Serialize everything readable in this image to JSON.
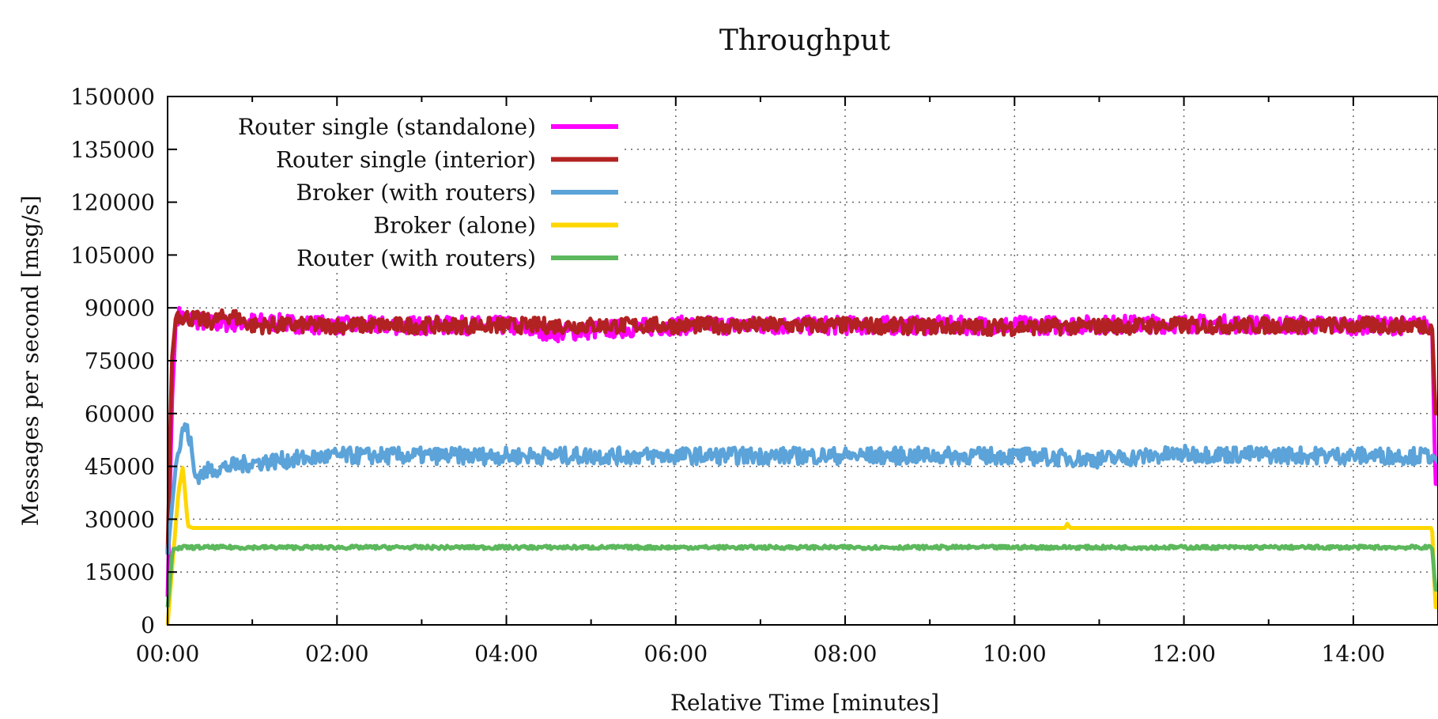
{
  "chart_data": {
    "type": "line",
    "title": "Throughput",
    "xlabel": "Relative Time [minutes]",
    "ylabel": "Messages per second [msg/s]",
    "xlim": [
      0,
      15
    ],
    "ylim": [
      0,
      150000
    ],
    "x_ticks": [
      0,
      2,
      4,
      6,
      8,
      10,
      12,
      14
    ],
    "x_tick_labels": [
      "00:00",
      "02:00",
      "04:00",
      "06:00",
      "08:00",
      "10:00",
      "12:00",
      "14:00"
    ],
    "y_ticks": [
      0,
      15000,
      30000,
      45000,
      60000,
      75000,
      90000,
      105000,
      120000,
      135000,
      150000
    ],
    "y_tick_labels": [
      "0",
      "15000",
      "30000",
      "45000",
      "60000",
      "75000",
      "90000",
      "105000",
      "120000",
      "135000",
      "150000"
    ],
    "grid": true,
    "legend_position": "top-left",
    "series": [
      {
        "name": "Router single (standalone)",
        "color": "#ff00ff",
        "noise": 2600,
        "points": [
          [
            0.0,
            8000
          ],
          [
            0.05,
            62000
          ],
          [
            0.1,
            88000
          ],
          [
            0.5,
            85500
          ],
          [
            1.0,
            86000
          ],
          [
            2.0,
            85000
          ],
          [
            4.0,
            85000
          ],
          [
            4.6,
            83000
          ],
          [
            6.0,
            85000
          ],
          [
            8.0,
            85000
          ],
          [
            10.0,
            85000
          ],
          [
            12.0,
            85500
          ],
          [
            14.0,
            85000
          ],
          [
            14.93,
            85000
          ],
          [
            14.97,
            40000
          ],
          [
            15.0,
            40000
          ]
        ]
      },
      {
        "name": "Router single (interior)",
        "color": "#b22222",
        "noise": 2300,
        "points": [
          [
            0.0,
            20000
          ],
          [
            0.05,
            75000
          ],
          [
            0.1,
            88000
          ],
          [
            0.5,
            86000
          ],
          [
            0.75,
            88000
          ],
          [
            1.0,
            85000
          ],
          [
            2.0,
            85000
          ],
          [
            4.0,
            85000
          ],
          [
            6.0,
            85000
          ],
          [
            8.0,
            85000
          ],
          [
            10.0,
            84500
          ],
          [
            12.0,
            85000
          ],
          [
            14.0,
            85000
          ],
          [
            14.93,
            85000
          ],
          [
            14.97,
            60000
          ],
          [
            15.0,
            60000
          ]
        ]
      },
      {
        "name": "Broker (with routers)",
        "color": "#5ba3d9",
        "noise": 2400,
        "points": [
          [
            0.0,
            20000
          ],
          [
            0.1,
            46000
          ],
          [
            0.2,
            57000
          ],
          [
            0.27,
            52000
          ],
          [
            0.32,
            42000
          ],
          [
            0.5,
            44000
          ],
          [
            1.0,
            46000
          ],
          [
            2.0,
            48000
          ],
          [
            4.0,
            48000
          ],
          [
            6.0,
            48000
          ],
          [
            8.0,
            48000
          ],
          [
            10.0,
            48000
          ],
          [
            11.0,
            47000
          ],
          [
            12.0,
            48500
          ],
          [
            14.0,
            48000
          ],
          [
            14.95,
            48000
          ],
          [
            15.0,
            46000
          ]
        ]
      },
      {
        "name": "Broker (alone)",
        "color": "#ffd700",
        "noise": 0,
        "points": [
          [
            0.0,
            0
          ],
          [
            0.05,
            15000
          ],
          [
            0.13,
            38000
          ],
          [
            0.18,
            45000
          ],
          [
            0.24,
            28000
          ],
          [
            0.3,
            27500
          ],
          [
            10.6,
            27500
          ],
          [
            10.62,
            28800
          ],
          [
            10.66,
            27500
          ],
          [
            14.93,
            27500
          ],
          [
            14.97,
            5000
          ],
          [
            15.0,
            5000
          ]
        ]
      },
      {
        "name": "Router (with routers)",
        "color": "#5cb85c",
        "noise": 500,
        "points": [
          [
            0.0,
            5000
          ],
          [
            0.06,
            21500
          ],
          [
            0.2,
            22000
          ],
          [
            2.0,
            22000
          ],
          [
            6.0,
            22000
          ],
          [
            10.0,
            22000
          ],
          [
            14.0,
            22000
          ],
          [
            14.93,
            22000
          ],
          [
            14.97,
            10000
          ],
          [
            15.0,
            10000
          ]
        ]
      }
    ]
  }
}
